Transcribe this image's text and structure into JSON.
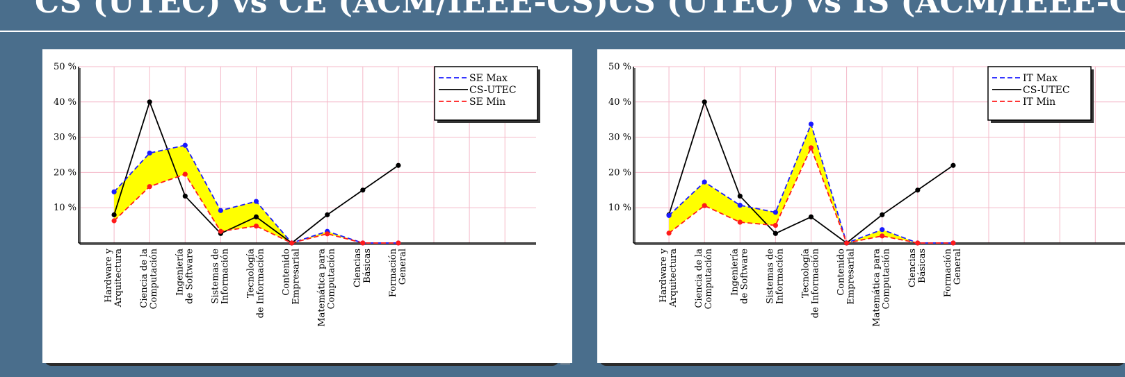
{
  "header": {
    "title": "CS (UTEC) vs CE (ACM/IEEE-CS)CS (UTEC) vs IS (ACM/IEEE-C"
  },
  "colors": {
    "background": "#4a6e8c",
    "max_line": "#1a1aff",
    "min_line": "#ff1a1a",
    "cs_line": "#000000",
    "band_fill": "#ffff00",
    "grid": "#f4b8c8"
  },
  "chart_data": [
    {
      "type": "line",
      "title": "",
      "xlabel": "",
      "ylabel": "",
      "ylim": [
        0,
        50
      ],
      "yticks": [
        "10 %",
        "20 %",
        "30 %",
        "40 %",
        "50 %"
      ],
      "grid": true,
      "legend_position": "top-right",
      "categories": [
        [
          "Hardware y",
          "Arquitectura"
        ],
        [
          "Ciencia de la",
          "Computación"
        ],
        [
          "Ingeniería",
          "de Software"
        ],
        [
          "Sistemas de",
          "Información"
        ],
        [
          "Tecnología",
          "de Información"
        ],
        [
          "Contenido",
          "Empresarial"
        ],
        [
          "Matemática para",
          "Computación"
        ],
        [
          "Ciencias",
          "Básicas"
        ],
        [
          "Formación",
          "General"
        ]
      ],
      "series": [
        {
          "name": "SE Max",
          "style": "dashed",
          "color": "#1a1aff",
          "values": [
            14.5,
            25.5,
            27.7,
            9.2,
            11.8,
            0,
            3.3,
            0,
            0
          ]
        },
        {
          "name": "CS-UTEC",
          "style": "solid",
          "color": "#000000",
          "values": [
            8,
            40,
            13.3,
            2.7,
            7.4,
            0,
            8,
            15,
            22
          ]
        },
        {
          "name": "SE Min",
          "style": "dashed",
          "color": "#ff1a1a",
          "values": [
            6.3,
            16,
            19.5,
            3.3,
            4.8,
            0,
            2.6,
            0,
            0
          ]
        }
      ]
    },
    {
      "type": "line",
      "title": "",
      "xlabel": "",
      "ylabel": "",
      "ylim": [
        0,
        50
      ],
      "yticks": [
        "10 %",
        "20 %",
        "30 %",
        "40 %",
        "50 %"
      ],
      "grid": true,
      "legend_position": "top-right",
      "categories": [
        [
          "Hardware y",
          "Arquitectura"
        ],
        [
          "Ciencia de la",
          "Computación"
        ],
        [
          "Ingeniería",
          "de Software"
        ],
        [
          "Sistemas de",
          "Información"
        ],
        [
          "Tecnología",
          "de Información"
        ],
        [
          "Contenido",
          "Empresarial"
        ],
        [
          "Matemática para",
          "Computación"
        ],
        [
          "Ciencias",
          "Básicas"
        ],
        [
          "Formación",
          "General"
        ]
      ],
      "series": [
        {
          "name": "IT Max",
          "style": "dashed",
          "color": "#1a1aff",
          "values": [
            7.8,
            17.3,
            10.7,
            8.7,
            33.7,
            0,
            3.8,
            0,
            0
          ]
        },
        {
          "name": "CS-UTEC",
          "style": "solid",
          "color": "#000000",
          "values": [
            8,
            40,
            13.3,
            2.7,
            7.4,
            0,
            8,
            15,
            22
          ]
        },
        {
          "name": "IT Min",
          "style": "dashed",
          "color": "#ff1a1a",
          "values": [
            2.8,
            10.6,
            5.9,
            5.0,
            27.0,
            0,
            2.0,
            0,
            0
          ]
        }
      ]
    }
  ]
}
